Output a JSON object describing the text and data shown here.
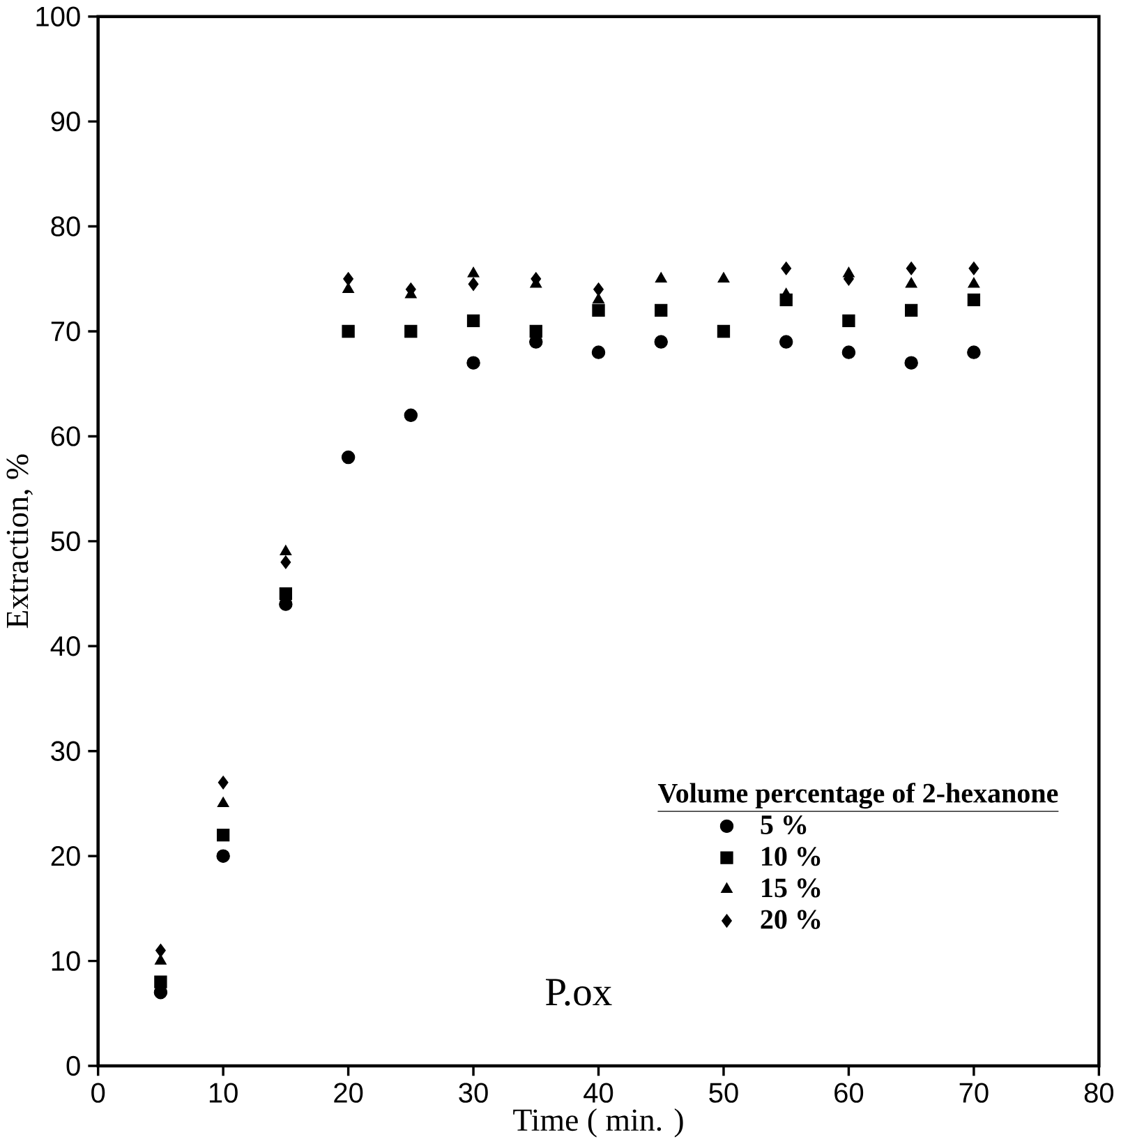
{
  "chart_data": {
    "type": "scatter",
    "xlabel": "Time ( min. )",
    "ylabel": "Extraction, %",
    "legend_title": "Volume percentage of 2-hexanone",
    "legend": "bottom right",
    "annotations": [
      "P.ox"
    ],
    "x": [
      5,
      10,
      15,
      20,
      25,
      30,
      35,
      40,
      45,
      50,
      55,
      60,
      65,
      70
    ],
    "xlim": [
      0,
      80
    ],
    "xticks": [
      0,
      10,
      20,
      30,
      40,
      50,
      60,
      70,
      80
    ],
    "ylim": [
      0,
      100
    ],
    "yticks": [
      0,
      10,
      20,
      30,
      40,
      50,
      60,
      70,
      80,
      90,
      100
    ],
    "series": [
      {
        "name": "5 %",
        "color": "#000000",
        "marker": "circle",
        "values": [
          7,
          20,
          44,
          58,
          62,
          67,
          69,
          68,
          69,
          null,
          69,
          68,
          67,
          68
        ]
      },
      {
        "name": "10 %",
        "color": "#000000",
        "marker": "square",
        "values": [
          8,
          22,
          45,
          70,
          70,
          71,
          70,
          72,
          72,
          70,
          73,
          71,
          72,
          73
        ]
      },
      {
        "name": "15 %",
        "color": "#000000",
        "marker": "triangle",
        "values": [
          10,
          25,
          49,
          74,
          73.5,
          75.5,
          74.5,
          73,
          75,
          75,
          73.5,
          75.5,
          74.5,
          74.5
        ]
      },
      {
        "name": "20 %",
        "color": "#000000",
        "marker": "diamond",
        "values": [
          11,
          27,
          48,
          75,
          74,
          74.5,
          75,
          74,
          null,
          null,
          76,
          75,
          76,
          76
        ]
      }
    ]
  }
}
